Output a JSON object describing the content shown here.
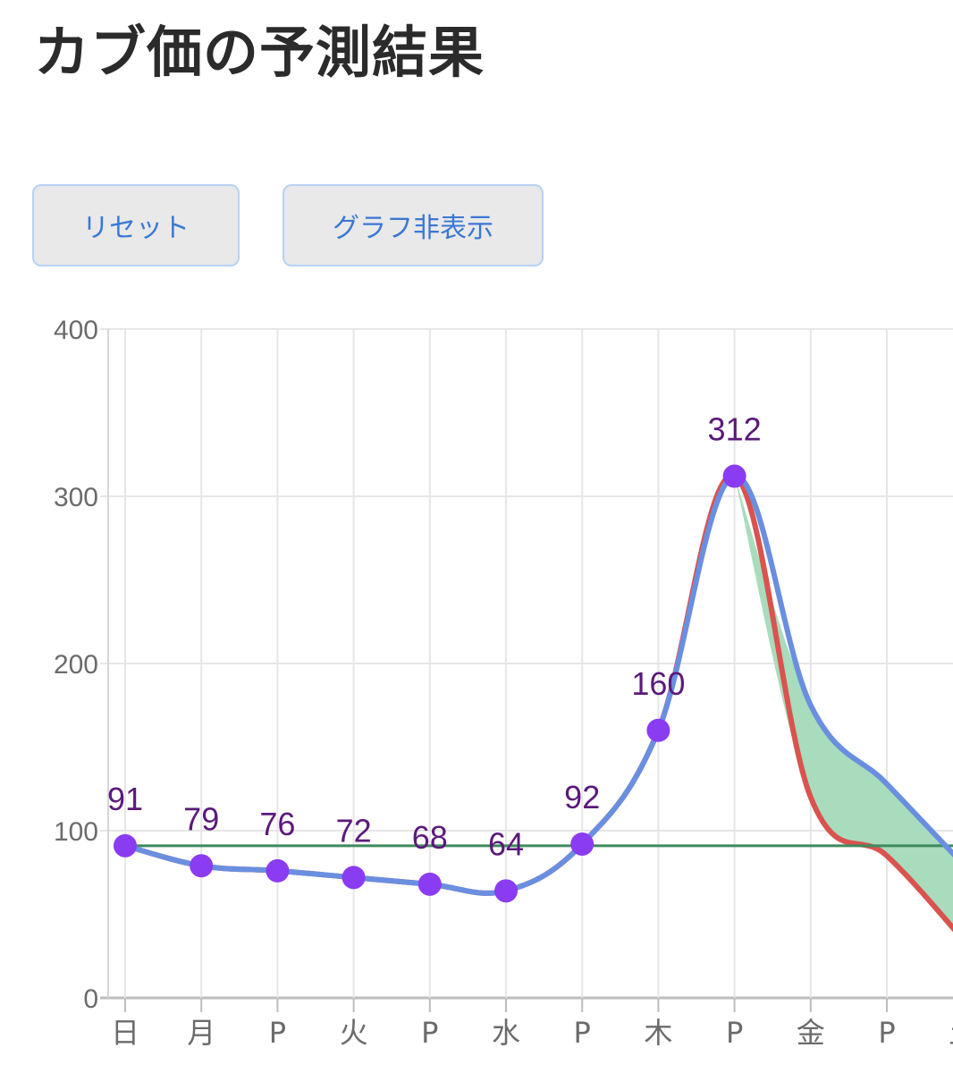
{
  "header": {
    "title": "カブ価の予測結果"
  },
  "buttons": {
    "reset_label": "リセット",
    "toggle_graph_label": "グラフ非表示"
  },
  "colors": {
    "actual_line": "#6a8fe0",
    "min_line": "#d9534f",
    "range_fill": "#a8dcbd",
    "buy_price_line": "#3f8a5e",
    "point": "#8a3cf2",
    "label": "#5a1a7a",
    "grid": "#e6e6e6"
  },
  "chart_data": {
    "type": "line",
    "categories": [
      "日",
      "月",
      "P",
      "火",
      "P",
      "水",
      "P",
      "木",
      "P",
      "金",
      "P",
      "土"
    ],
    "ylim": [
      0,
      400
    ],
    "y_ticks": [
      0,
      100,
      200,
      300,
      400
    ],
    "grid": true,
    "buy_price": 91,
    "series": [
      {
        "values": [
          91,
          79,
          76,
          72,
          68,
          64,
          92,
          160,
          312,
          175,
          128,
          80
        ]
      },
      {
        "values": [
          91,
          79,
          76,
          72,
          68,
          64,
          92,
          160,
          312,
          120,
          85,
          35
        ]
      }
    ],
    "data_labels": [
      {
        "index": 0,
        "text": "91"
      },
      {
        "index": 1,
        "text": "79"
      },
      {
        "index": 2,
        "text": "76"
      },
      {
        "index": 3,
        "text": "72"
      },
      {
        "index": 4,
        "text": "68"
      },
      {
        "index": 5,
        "text": "64"
      },
      {
        "index": 6,
        "text": "92"
      },
      {
        "index": 7,
        "text": "160"
      },
      {
        "index": 8,
        "text": "312"
      }
    ]
  }
}
